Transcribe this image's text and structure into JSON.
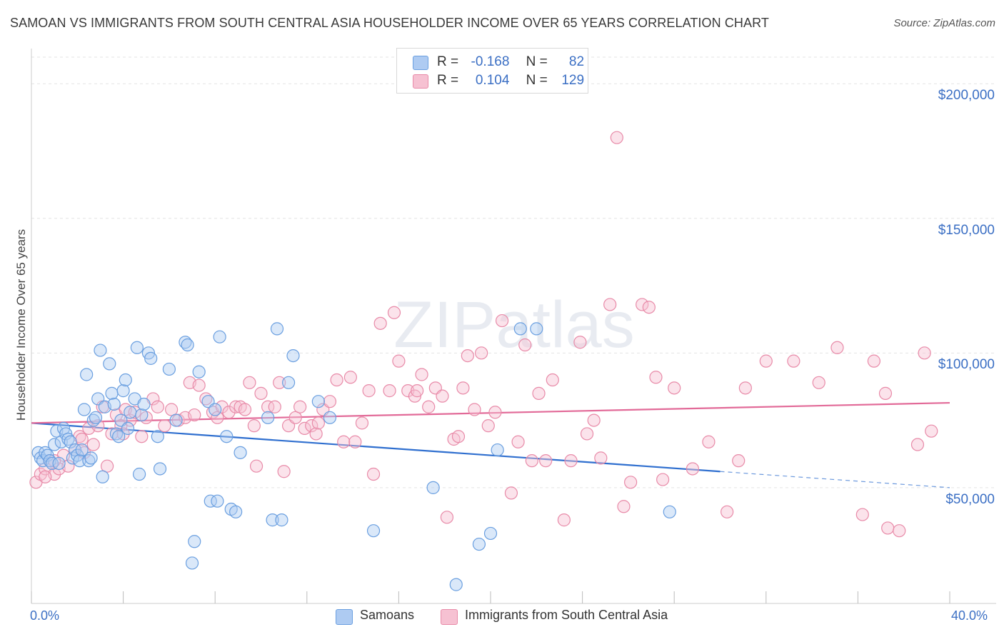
{
  "title": "SAMOAN VS IMMIGRANTS FROM SOUTH CENTRAL ASIA HOUSEHOLDER INCOME OVER 65 YEARS CORRELATION CHART",
  "source": "Source: ZipAtlas.com",
  "watermark": "ZIPatlas",
  "colors": {
    "blue": "#6a9fe0",
    "blue_fill": "#aecbf2",
    "blue_line": "#2f6fcf",
    "pink": "#e88aa8",
    "pink_fill": "#f6c1d2",
    "pink_line": "#e26a98",
    "axis_text": "#3b6fc4",
    "grid": "#e3e3e3"
  },
  "legend": {
    "rows": [
      {
        "r_label": "R =",
        "r_value": "-0.168",
        "n_label": "N =",
        "n_value": "82"
      },
      {
        "r_label": "R =",
        "r_value": "0.104",
        "n_label": "N =",
        "n_value": "129"
      }
    ]
  },
  "bottom_legend": {
    "series1": "Samoans",
    "series2": "Immigrants from South Central Asia"
  },
  "chart_data": {
    "type": "scatter",
    "xlabel": "",
    "ylabel": "Householder Income Over 65 years",
    "xlim": [
      0,
      40
    ],
    "ylim": [
      7000,
      212000
    ],
    "x_tick_labels": [
      "0.0%",
      "40.0%"
    ],
    "y_ticks": [
      50000,
      100000,
      150000,
      200000
    ],
    "y_tick_labels": [
      "$50,000",
      "$100,000",
      "$150,000",
      "$200,000"
    ],
    "grid": "horizontal dashed",
    "legend_position": "top-center",
    "series": [
      {
        "name": "Samoans",
        "color": "#6a9fe0",
        "trend": {
          "x": [
            0,
            30
          ],
          "y": [
            74000,
            56000
          ],
          "extrapolate_to": [
            40,
            50000
          ]
        },
        "points": [
          [
            0.3,
            63000
          ],
          [
            0.4,
            61000
          ],
          [
            0.5,
            60000
          ],
          [
            0.6,
            63000
          ],
          [
            0.7,
            62000
          ],
          [
            0.8,
            60000
          ],
          [
            0.9,
            59000
          ],
          [
            1.0,
            66000
          ],
          [
            1.1,
            71000
          ],
          [
            1.2,
            59000
          ],
          [
            1.3,
            67000
          ],
          [
            1.4,
            72000
          ],
          [
            1.5,
            70000
          ],
          [
            1.6,
            68000
          ],
          [
            1.7,
            67000
          ],
          [
            1.8,
            61000
          ],
          [
            1.9,
            64000
          ],
          [
            2.0,
            62000
          ],
          [
            2.1,
            60000
          ],
          [
            2.2,
            64000
          ],
          [
            2.3,
            79000
          ],
          [
            2.4,
            92000
          ],
          [
            2.5,
            60000
          ],
          [
            2.6,
            61000
          ],
          [
            2.7,
            75000
          ],
          [
            2.8,
            76000
          ],
          [
            2.9,
            83000
          ],
          [
            3.0,
            101000
          ],
          [
            3.1,
            54000
          ],
          [
            3.2,
            80000
          ],
          [
            3.4,
            96000
          ],
          [
            3.5,
            85000
          ],
          [
            3.6,
            81000
          ],
          [
            3.7,
            70000
          ],
          [
            3.8,
            69000
          ],
          [
            3.9,
            75000
          ],
          [
            4.0,
            86000
          ],
          [
            4.1,
            90000
          ],
          [
            4.2,
            72000
          ],
          [
            4.3,
            78000
          ],
          [
            4.5,
            83000
          ],
          [
            4.6,
            102000
          ],
          [
            4.7,
            55000
          ],
          [
            4.8,
            77000
          ],
          [
            4.9,
            81000
          ],
          [
            5.1,
            100000
          ],
          [
            5.2,
            98000
          ],
          [
            5.5,
            69000
          ],
          [
            5.6,
            57000
          ],
          [
            6.0,
            94000
          ],
          [
            6.3,
            75000
          ],
          [
            6.7,
            104000
          ],
          [
            6.8,
            103000
          ],
          [
            7.0,
            22000
          ],
          [
            7.1,
            30000
          ],
          [
            7.3,
            93000
          ],
          [
            7.7,
            82000
          ],
          [
            7.8,
            45000
          ],
          [
            8.0,
            79000
          ],
          [
            8.1,
            45000
          ],
          [
            8.2,
            106000
          ],
          [
            8.5,
            69000
          ],
          [
            8.7,
            42000
          ],
          [
            8.9,
            41000
          ],
          [
            9.1,
            63000
          ],
          [
            10.3,
            76000
          ],
          [
            10.5,
            38000
          ],
          [
            10.7,
            109000
          ],
          [
            10.9,
            38000
          ],
          [
            11.2,
            89000
          ],
          [
            11.4,
            99000
          ],
          [
            12.5,
            82000
          ],
          [
            13.0,
            76000
          ],
          [
            14.9,
            34000
          ],
          [
            17.5,
            50000
          ],
          [
            18.5,
            14000
          ],
          [
            19.5,
            29000
          ],
          [
            20.0,
            33000
          ],
          [
            20.3,
            64000
          ],
          [
            21.3,
            109000
          ],
          [
            22.0,
            109000
          ],
          [
            27.8,
            41000
          ]
        ]
      },
      {
        "name": "Immigrants from South Central Asia",
        "color": "#e88aa8",
        "trend": {
          "x": [
            0,
            40
          ],
          "y": [
            74000,
            81500
          ]
        },
        "points": [
          [
            0.2,
            52000
          ],
          [
            0.4,
            55000
          ],
          [
            0.6,
            57000
          ],
          [
            0.8,
            60000
          ],
          [
            1.0,
            55000
          ],
          [
            1.2,
            57000
          ],
          [
            1.4,
            62000
          ],
          [
            1.6,
            58000
          ],
          [
            1.9,
            64000
          ],
          [
            2.1,
            69000
          ],
          [
            2.3,
            63000
          ],
          [
            2.5,
            72000
          ],
          [
            2.7,
            66000
          ],
          [
            2.9,
            73000
          ],
          [
            3.1,
            80000
          ],
          [
            3.3,
            58000
          ],
          [
            3.5,
            70000
          ],
          [
            3.7,
            77000
          ],
          [
            3.9,
            73000
          ],
          [
            4.1,
            79000
          ],
          [
            4.3,
            75000
          ],
          [
            4.5,
            78000
          ],
          [
            4.8,
            69000
          ],
          [
            5.0,
            76000
          ],
          [
            5.3,
            83000
          ],
          [
            5.5,
            80000
          ],
          [
            5.8,
            73000
          ],
          [
            6.1,
            79000
          ],
          [
            6.4,
            75000
          ],
          [
            6.7,
            76000
          ],
          [
            6.9,
            89000
          ],
          [
            7.1,
            77000
          ],
          [
            7.3,
            88000
          ],
          [
            7.6,
            83000
          ],
          [
            7.9,
            78000
          ],
          [
            8.1,
            76000
          ],
          [
            8.3,
            80000
          ],
          [
            8.6,
            78000
          ],
          [
            8.9,
            80000
          ],
          [
            9.1,
            80000
          ],
          [
            9.3,
            79000
          ],
          [
            9.5,
            89000
          ],
          [
            9.8,
            58000
          ],
          [
            10.0,
            85000
          ],
          [
            10.3,
            80000
          ],
          [
            10.6,
            80000
          ],
          [
            10.8,
            89000
          ],
          [
            11.0,
            56000
          ],
          [
            11.2,
            73000
          ],
          [
            11.5,
            76000
          ],
          [
            11.7,
            80000
          ],
          [
            11.9,
            72000
          ],
          [
            12.2,
            73000
          ],
          [
            12.4,
            70000
          ],
          [
            12.7,
            79000
          ],
          [
            13.0,
            82000
          ],
          [
            13.3,
            90000
          ],
          [
            13.6,
            67000
          ],
          [
            13.9,
            91000
          ],
          [
            14.1,
            67000
          ],
          [
            14.4,
            74000
          ],
          [
            14.7,
            86000
          ],
          [
            14.9,
            55000
          ],
          [
            15.2,
            111000
          ],
          [
            15.6,
            86000
          ],
          [
            15.8,
            115000
          ],
          [
            16.0,
            97000
          ],
          [
            16.4,
            86000
          ],
          [
            16.7,
            84000
          ],
          [
            17.0,
            92000
          ],
          [
            17.3,
            80000
          ],
          [
            17.6,
            87000
          ],
          [
            17.9,
            84000
          ],
          [
            18.1,
            39000
          ],
          [
            18.4,
            68000
          ],
          [
            18.6,
            69000
          ],
          [
            18.8,
            87000
          ],
          [
            19.0,
            99000
          ],
          [
            19.3,
            79000
          ],
          [
            19.6,
            100000
          ],
          [
            19.9,
            73000
          ],
          [
            20.2,
            78000
          ],
          [
            20.5,
            112000
          ],
          [
            20.9,
            48000
          ],
          [
            21.2,
            67000
          ],
          [
            21.5,
            103000
          ],
          [
            21.8,
            60000
          ],
          [
            22.1,
            85000
          ],
          [
            22.4,
            60000
          ],
          [
            22.7,
            90000
          ],
          [
            23.2,
            38000
          ],
          [
            23.5,
            60000
          ],
          [
            23.9,
            104000
          ],
          [
            24.2,
            70000
          ],
          [
            24.5,
            75000
          ],
          [
            24.8,
            61000
          ],
          [
            25.2,
            118000
          ],
          [
            25.5,
            180000
          ],
          [
            25.8,
            43000
          ],
          [
            26.1,
            52000
          ],
          [
            26.6,
            118000
          ],
          [
            26.9,
            117000
          ],
          [
            27.2,
            91000
          ],
          [
            27.5,
            53000
          ],
          [
            28.0,
            87000
          ],
          [
            28.8,
            57000
          ],
          [
            29.5,
            67000
          ],
          [
            30.3,
            41000
          ],
          [
            30.8,
            60000
          ],
          [
            31.1,
            87000
          ],
          [
            32.0,
            97000
          ],
          [
            33.2,
            97000
          ],
          [
            34.3,
            89000
          ],
          [
            35.1,
            102000
          ],
          [
            36.2,
            40000
          ],
          [
            36.7,
            97000
          ],
          [
            37.3,
            35000
          ],
          [
            37.8,
            34000
          ],
          [
            38.6,
            66000
          ],
          [
            39.2,
            71000
          ],
          [
            37.2,
            85000
          ],
          [
            38.9,
            100000
          ],
          [
            16.8,
            86000
          ],
          [
            12.5,
            74000
          ],
          [
            9.7,
            73000
          ],
          [
            4.0,
            70000
          ],
          [
            2.2,
            68000
          ],
          [
            1.0,
            60000
          ],
          [
            0.6,
            54000
          ]
        ]
      }
    ]
  }
}
